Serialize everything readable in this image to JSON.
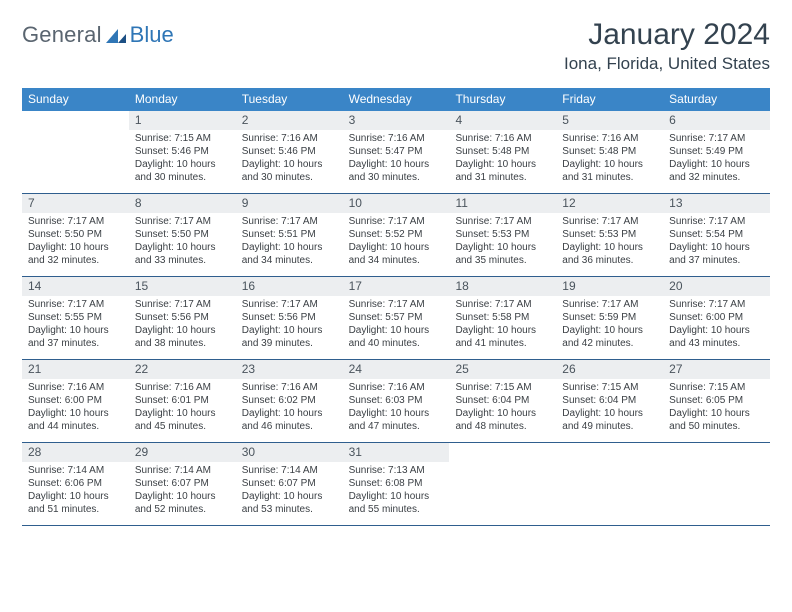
{
  "logo": {
    "general": "General",
    "blue": "Blue"
  },
  "title": "January 2024",
  "location": "Iona, Florida, United States",
  "colors": {
    "header_bg": "#3a85c7",
    "header_text": "#ffffff",
    "band_bg": "#eceef0",
    "rule": "#2f5e8e",
    "title_text": "#33424f",
    "logo_gray": "#5a6570",
    "logo_blue": "#2f76b6"
  },
  "day_headers": [
    "Sunday",
    "Monday",
    "Tuesday",
    "Wednesday",
    "Thursday",
    "Friday",
    "Saturday"
  ],
  "weeks": [
    [
      {
        "num": "",
        "sunrise": "",
        "sunset": "",
        "daylight1": "",
        "daylight2": ""
      },
      {
        "num": "1",
        "sunrise": "Sunrise: 7:15 AM",
        "sunset": "Sunset: 5:46 PM",
        "daylight1": "Daylight: 10 hours",
        "daylight2": "and 30 minutes."
      },
      {
        "num": "2",
        "sunrise": "Sunrise: 7:16 AM",
        "sunset": "Sunset: 5:46 PM",
        "daylight1": "Daylight: 10 hours",
        "daylight2": "and 30 minutes."
      },
      {
        "num": "3",
        "sunrise": "Sunrise: 7:16 AM",
        "sunset": "Sunset: 5:47 PM",
        "daylight1": "Daylight: 10 hours",
        "daylight2": "and 30 minutes."
      },
      {
        "num": "4",
        "sunrise": "Sunrise: 7:16 AM",
        "sunset": "Sunset: 5:48 PM",
        "daylight1": "Daylight: 10 hours",
        "daylight2": "and 31 minutes."
      },
      {
        "num": "5",
        "sunrise": "Sunrise: 7:16 AM",
        "sunset": "Sunset: 5:48 PM",
        "daylight1": "Daylight: 10 hours",
        "daylight2": "and 31 minutes."
      },
      {
        "num": "6",
        "sunrise": "Sunrise: 7:17 AM",
        "sunset": "Sunset: 5:49 PM",
        "daylight1": "Daylight: 10 hours",
        "daylight2": "and 32 minutes."
      }
    ],
    [
      {
        "num": "7",
        "sunrise": "Sunrise: 7:17 AM",
        "sunset": "Sunset: 5:50 PM",
        "daylight1": "Daylight: 10 hours",
        "daylight2": "and 32 minutes."
      },
      {
        "num": "8",
        "sunrise": "Sunrise: 7:17 AM",
        "sunset": "Sunset: 5:50 PM",
        "daylight1": "Daylight: 10 hours",
        "daylight2": "and 33 minutes."
      },
      {
        "num": "9",
        "sunrise": "Sunrise: 7:17 AM",
        "sunset": "Sunset: 5:51 PM",
        "daylight1": "Daylight: 10 hours",
        "daylight2": "and 34 minutes."
      },
      {
        "num": "10",
        "sunrise": "Sunrise: 7:17 AM",
        "sunset": "Sunset: 5:52 PM",
        "daylight1": "Daylight: 10 hours",
        "daylight2": "and 34 minutes."
      },
      {
        "num": "11",
        "sunrise": "Sunrise: 7:17 AM",
        "sunset": "Sunset: 5:53 PM",
        "daylight1": "Daylight: 10 hours",
        "daylight2": "and 35 minutes."
      },
      {
        "num": "12",
        "sunrise": "Sunrise: 7:17 AM",
        "sunset": "Sunset: 5:53 PM",
        "daylight1": "Daylight: 10 hours",
        "daylight2": "and 36 minutes."
      },
      {
        "num": "13",
        "sunrise": "Sunrise: 7:17 AM",
        "sunset": "Sunset: 5:54 PM",
        "daylight1": "Daylight: 10 hours",
        "daylight2": "and 37 minutes."
      }
    ],
    [
      {
        "num": "14",
        "sunrise": "Sunrise: 7:17 AM",
        "sunset": "Sunset: 5:55 PM",
        "daylight1": "Daylight: 10 hours",
        "daylight2": "and 37 minutes."
      },
      {
        "num": "15",
        "sunrise": "Sunrise: 7:17 AM",
        "sunset": "Sunset: 5:56 PM",
        "daylight1": "Daylight: 10 hours",
        "daylight2": "and 38 minutes."
      },
      {
        "num": "16",
        "sunrise": "Sunrise: 7:17 AM",
        "sunset": "Sunset: 5:56 PM",
        "daylight1": "Daylight: 10 hours",
        "daylight2": "and 39 minutes."
      },
      {
        "num": "17",
        "sunrise": "Sunrise: 7:17 AM",
        "sunset": "Sunset: 5:57 PM",
        "daylight1": "Daylight: 10 hours",
        "daylight2": "and 40 minutes."
      },
      {
        "num": "18",
        "sunrise": "Sunrise: 7:17 AM",
        "sunset": "Sunset: 5:58 PM",
        "daylight1": "Daylight: 10 hours",
        "daylight2": "and 41 minutes."
      },
      {
        "num": "19",
        "sunrise": "Sunrise: 7:17 AM",
        "sunset": "Sunset: 5:59 PM",
        "daylight1": "Daylight: 10 hours",
        "daylight2": "and 42 minutes."
      },
      {
        "num": "20",
        "sunrise": "Sunrise: 7:17 AM",
        "sunset": "Sunset: 6:00 PM",
        "daylight1": "Daylight: 10 hours",
        "daylight2": "and 43 minutes."
      }
    ],
    [
      {
        "num": "21",
        "sunrise": "Sunrise: 7:16 AM",
        "sunset": "Sunset: 6:00 PM",
        "daylight1": "Daylight: 10 hours",
        "daylight2": "and 44 minutes."
      },
      {
        "num": "22",
        "sunrise": "Sunrise: 7:16 AM",
        "sunset": "Sunset: 6:01 PM",
        "daylight1": "Daylight: 10 hours",
        "daylight2": "and 45 minutes."
      },
      {
        "num": "23",
        "sunrise": "Sunrise: 7:16 AM",
        "sunset": "Sunset: 6:02 PM",
        "daylight1": "Daylight: 10 hours",
        "daylight2": "and 46 minutes."
      },
      {
        "num": "24",
        "sunrise": "Sunrise: 7:16 AM",
        "sunset": "Sunset: 6:03 PM",
        "daylight1": "Daylight: 10 hours",
        "daylight2": "and 47 minutes."
      },
      {
        "num": "25",
        "sunrise": "Sunrise: 7:15 AM",
        "sunset": "Sunset: 6:04 PM",
        "daylight1": "Daylight: 10 hours",
        "daylight2": "and 48 minutes."
      },
      {
        "num": "26",
        "sunrise": "Sunrise: 7:15 AM",
        "sunset": "Sunset: 6:04 PM",
        "daylight1": "Daylight: 10 hours",
        "daylight2": "and 49 minutes."
      },
      {
        "num": "27",
        "sunrise": "Sunrise: 7:15 AM",
        "sunset": "Sunset: 6:05 PM",
        "daylight1": "Daylight: 10 hours",
        "daylight2": "and 50 minutes."
      }
    ],
    [
      {
        "num": "28",
        "sunrise": "Sunrise: 7:14 AM",
        "sunset": "Sunset: 6:06 PM",
        "daylight1": "Daylight: 10 hours",
        "daylight2": "and 51 minutes."
      },
      {
        "num": "29",
        "sunrise": "Sunrise: 7:14 AM",
        "sunset": "Sunset: 6:07 PM",
        "daylight1": "Daylight: 10 hours",
        "daylight2": "and 52 minutes."
      },
      {
        "num": "30",
        "sunrise": "Sunrise: 7:14 AM",
        "sunset": "Sunset: 6:07 PM",
        "daylight1": "Daylight: 10 hours",
        "daylight2": "and 53 minutes."
      },
      {
        "num": "31",
        "sunrise": "Sunrise: 7:13 AM",
        "sunset": "Sunset: 6:08 PM",
        "daylight1": "Daylight: 10 hours",
        "daylight2": "and 55 minutes."
      },
      {
        "num": "",
        "sunrise": "",
        "sunset": "",
        "daylight1": "",
        "daylight2": ""
      },
      {
        "num": "",
        "sunrise": "",
        "sunset": "",
        "daylight1": "",
        "daylight2": ""
      },
      {
        "num": "",
        "sunrise": "",
        "sunset": "",
        "daylight1": "",
        "daylight2": ""
      }
    ]
  ]
}
